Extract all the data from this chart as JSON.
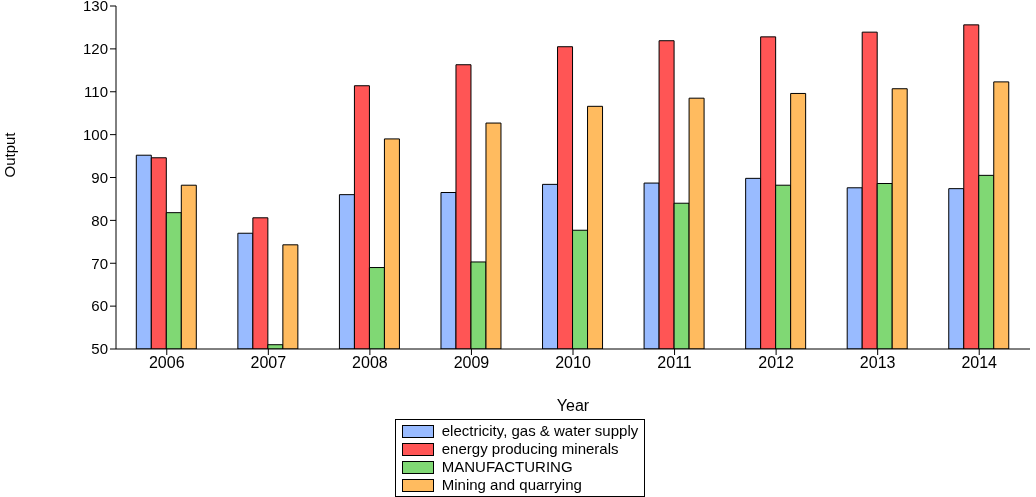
{
  "chart_data": {
    "type": "bar",
    "xlabel": "Year",
    "ylabel": "Output",
    "categories": [
      "2006",
      "2007",
      "2008",
      "2009",
      "2010",
      "2011",
      "2012",
      "2013",
      "2014"
    ],
    "series": [
      {
        "name": "electricity, gas & water supply",
        "color": "#99bbff",
        "values": [
          95.2,
          77,
          86,
          86.5,
          88.4,
          88.7,
          89.8,
          87.6,
          87.4
        ]
      },
      {
        "name": "energy producing minerals",
        "color": "#ff5555",
        "values": [
          94.6,
          80.6,
          111.4,
          116.3,
          120.5,
          121.9,
          122.8,
          123.9,
          125.6
        ]
      },
      {
        "name": "MANUFACTURING",
        "color": "#80d874",
        "values": [
          81.8,
          51,
          69,
          70.3,
          77.7,
          84,
          88.2,
          88.6,
          90.5
        ]
      },
      {
        "name": "Mining and quarrying",
        "color": "#ffbb5f",
        "values": [
          88.2,
          74.3,
          99,
          102.7,
          106.6,
          108.5,
          109.6,
          110.7,
          112.3
        ]
      }
    ],
    "ylim": [
      50,
      130
    ],
    "yticks": [
      50,
      60,
      70,
      80,
      90,
      100,
      110,
      120,
      130
    ],
    "grid": false,
    "legend": "bottom"
  }
}
